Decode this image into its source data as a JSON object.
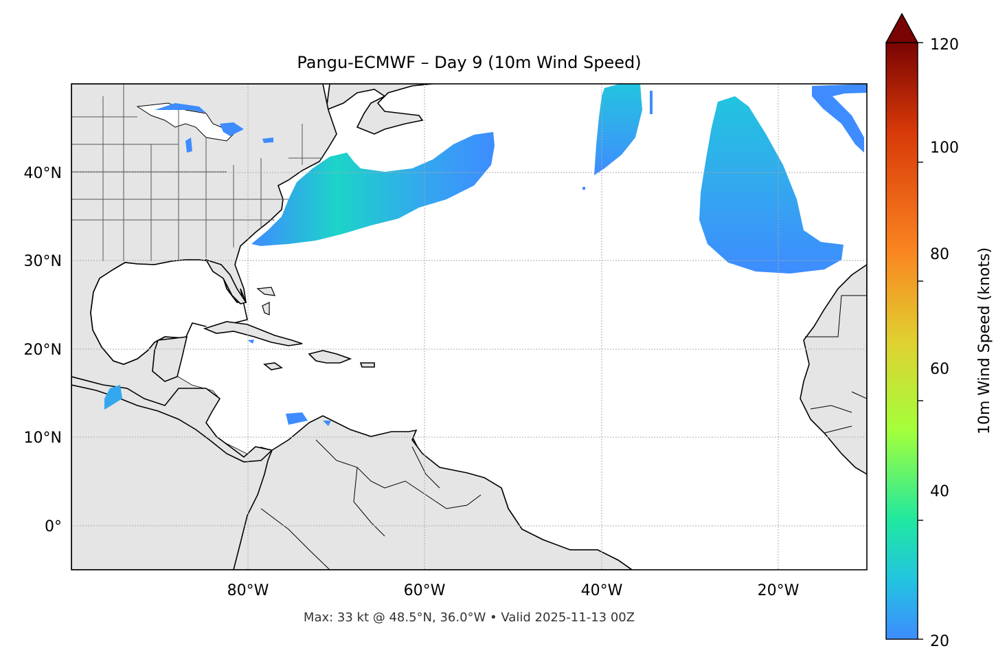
{
  "title": "Pangu-ECMWF – Day 9 (10m Wind Speed)",
  "footer": "Max: 33 kt @ 48.5°N, 36.0°W • Valid 2025-11-13 00Z",
  "map": {
    "lon_range": [
      -100,
      -10
    ],
    "lat_range": [
      -5,
      50
    ],
    "x_ticks": [
      {
        "value": -80,
        "label": "80°W"
      },
      {
        "value": -60,
        "label": "60°W"
      },
      {
        "value": -40,
        "label": "40°W"
      },
      {
        "value": -20,
        "label": "20°W"
      }
    ],
    "y_ticks": [
      {
        "value": 0,
        "label": "0°"
      },
      {
        "value": 10,
        "label": "10°N"
      },
      {
        "value": 20,
        "label": "20°N"
      },
      {
        "value": 30,
        "label": "30°N"
      },
      {
        "value": 40,
        "label": "40°N"
      }
    ],
    "gridlines": "dotted",
    "land_color": "#e5e5e5",
    "ocean_color": "#ffffff",
    "wind_regions": [
      "Western Atlantic off US East Coast",
      "Central North Atlantic near 40°W",
      "Eastern Atlantic west of Canary Islands",
      "Far northeast Atlantic",
      "Great Lakes",
      "Gulf of Tehuantepec",
      "Caribbean north of Venezuela"
    ]
  },
  "colorbar": {
    "label": "10m Wind Speed (knots)",
    "range": [
      20,
      120
    ],
    "ticks": [
      "20",
      "40",
      "60",
      "80",
      "100",
      "120"
    ],
    "extend": "max",
    "colors": [
      "#3e8cff",
      "#22c4e0",
      "#20e8a0",
      "#a4ff3a",
      "#e0d030",
      "#fa8520",
      "#d83a08",
      "#7a0403"
    ]
  },
  "chart_data": {
    "type": "heatmap",
    "title": "Pangu-ECMWF – Day 9 (10m Wind Speed)",
    "colorbar_label": "10m Wind Speed (knots)",
    "vmin": 20,
    "vmax": 120,
    "max_value": 33,
    "max_location": {
      "lat": 48.5,
      "lon": -36.0
    },
    "valid_time": "2025-11-13 00Z"
  }
}
